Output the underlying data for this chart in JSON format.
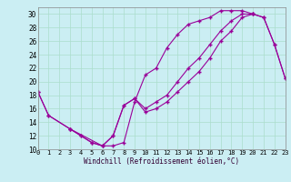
{
  "xlabel": "Windchill (Refroidissement éolien,°C)",
  "bg_color": "#cbeef3",
  "line_color": "#990099",
  "marker": "+",
  "xlim": [
    0,
    23
  ],
  "ylim": [
    10,
    31
  ],
  "xticks": [
    0,
    1,
    2,
    3,
    4,
    5,
    6,
    7,
    8,
    9,
    10,
    11,
    12,
    13,
    14,
    15,
    16,
    17,
    18,
    19,
    20,
    21,
    22,
    23
  ],
  "yticks": [
    10,
    12,
    14,
    16,
    18,
    20,
    22,
    24,
    26,
    28,
    30
  ],
  "line1_x": [
    0,
    1,
    3,
    4,
    5,
    6,
    7,
    8,
    9,
    10,
    11,
    12,
    13,
    14,
    15,
    16,
    17,
    18,
    19,
    20
  ],
  "line1_y": [
    18.5,
    15.0,
    13.0,
    12.0,
    11.0,
    10.5,
    10.5,
    11.0,
    17.0,
    21.0,
    22.0,
    25.0,
    27.0,
    28.5,
    29.0,
    29.5,
    30.5,
    30.5,
    30.5,
    30.0
  ],
  "line2_x": [
    0,
    1,
    3,
    4,
    5,
    6,
    7,
    8,
    9,
    10,
    11,
    12,
    13,
    14,
    15,
    16,
    17,
    18,
    19,
    20,
    21,
    22,
    23
  ],
  "line2_y": [
    18.5,
    15.0,
    13.0,
    12.0,
    11.0,
    10.5,
    12.0,
    16.5,
    17.5,
    16.0,
    17.0,
    18.0,
    20.0,
    22.0,
    23.5,
    25.5,
    27.5,
    29.0,
    30.0,
    30.0,
    29.5,
    25.5,
    20.5
  ],
  "line3_x": [
    3,
    6,
    7,
    8,
    9,
    10,
    11,
    12,
    13,
    14,
    15,
    16,
    17,
    18,
    19,
    20,
    21,
    22,
    23
  ],
  "line3_y": [
    13.0,
    10.5,
    12.0,
    16.5,
    17.5,
    15.5,
    16.0,
    17.0,
    18.5,
    20.0,
    21.5,
    23.5,
    26.0,
    27.5,
    29.5,
    30.0,
    29.5,
    25.5,
    20.5
  ]
}
